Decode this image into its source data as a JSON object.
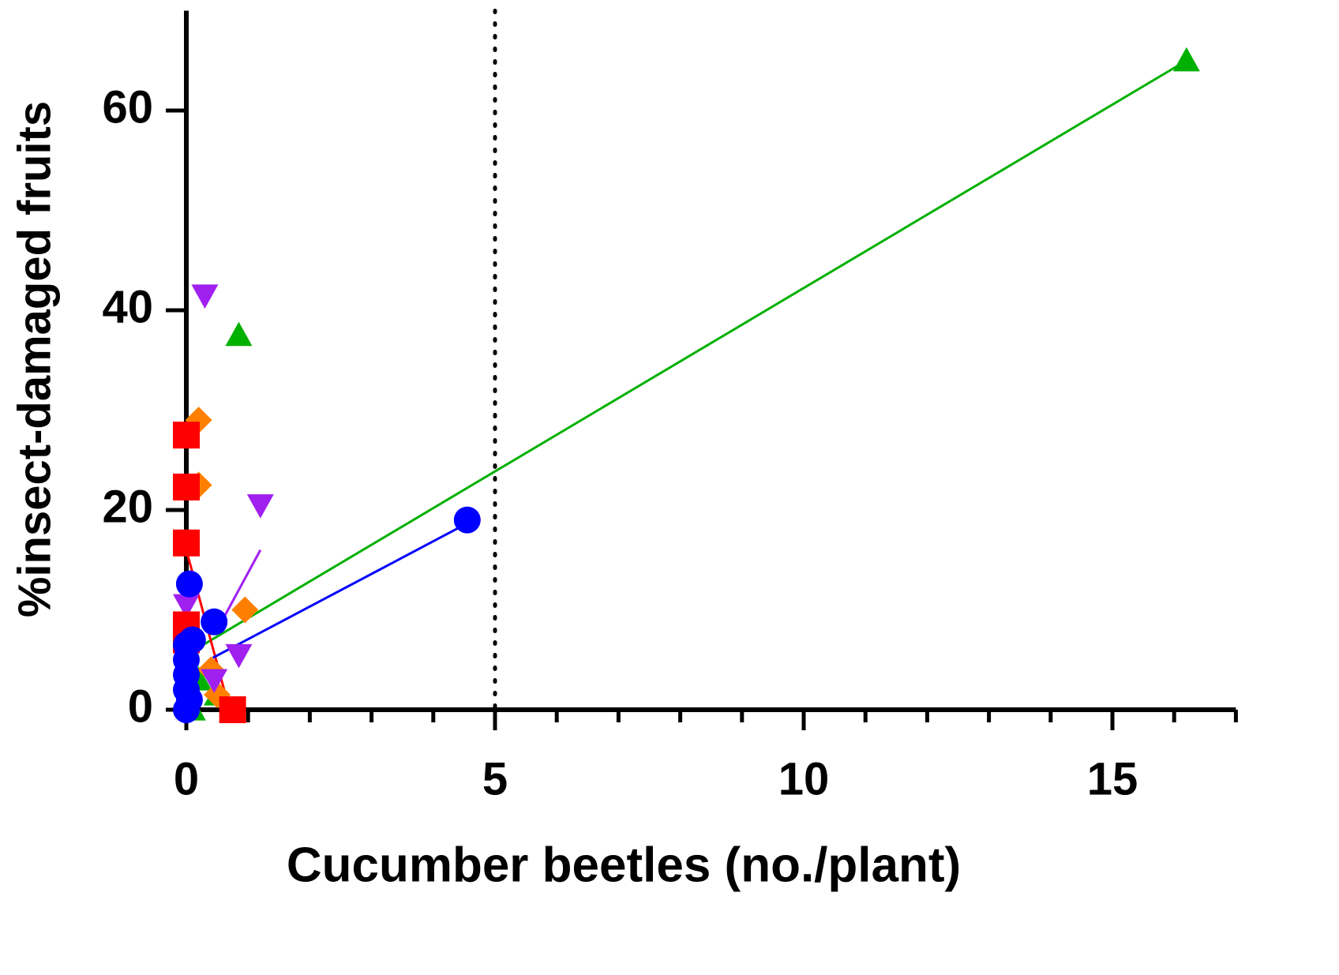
{
  "chart_data": {
    "type": "scatter",
    "xlabel": "Cucumber beetles (no./plant)",
    "ylabel": "%insect-damaged fruits",
    "xlim": [
      0,
      17
    ],
    "ylim": [
      0,
      70
    ],
    "xticks": [
      0,
      5,
      10,
      15
    ],
    "xminorticks": [
      1,
      2,
      3,
      4,
      6,
      7,
      8,
      9,
      11,
      12,
      13,
      14,
      16,
      17
    ],
    "yticks": [
      0,
      20,
      40,
      60
    ],
    "vline": 5,
    "series": [
      {
        "color": "#00b000",
        "marker": "triangle-up",
        "x": [
          16.2,
          0.85,
          0.5,
          0.1,
          0.2
        ],
        "values": [
          65,
          37.5,
          1.5,
          0,
          3
        ],
        "fit_x": [
          0,
          16.2
        ],
        "fit_y": [
          5.5,
          65
        ]
      },
      {
        "color": "#ff8000",
        "marker": "diamond",
        "x": [
          0.2,
          0.2,
          0.95,
          0.4,
          0.5
        ],
        "values": [
          29,
          22.5,
          10,
          4,
          1.5
        ]
      },
      {
        "color": "#a020f0",
        "marker": "triangle-down",
        "x": [
          0.3,
          1.2,
          0,
          0.85,
          0.45
        ],
        "values": [
          41.5,
          20.5,
          10.5,
          5.5,
          3
        ],
        "fit_x": [
          0.5,
          1.2
        ],
        "fit_y": [
          8,
          16
        ]
      },
      {
        "color": "#ff0000",
        "marker": "square",
        "x": [
          0,
          0,
          0,
          0,
          0,
          0.75
        ],
        "values": [
          27.5,
          22.3,
          16.7,
          8.5,
          7,
          0
        ],
        "fit_x": [
          0,
          0.7
        ],
        "fit_y": [
          16,
          0
        ]
      },
      {
        "color": "#0000ff",
        "marker": "circle",
        "x": [
          4.55,
          0.05,
          0.45,
          0.1,
          0,
          0,
          0,
          0,
          0.05,
          0
        ],
        "values": [
          19,
          12.6,
          8.8,
          7,
          6.5,
          5,
          3.5,
          2,
          1,
          0
        ],
        "fit_x": [
          0.43,
          4.56
        ],
        "fit_y": [
          5.2,
          18.7
        ]
      }
    ]
  }
}
